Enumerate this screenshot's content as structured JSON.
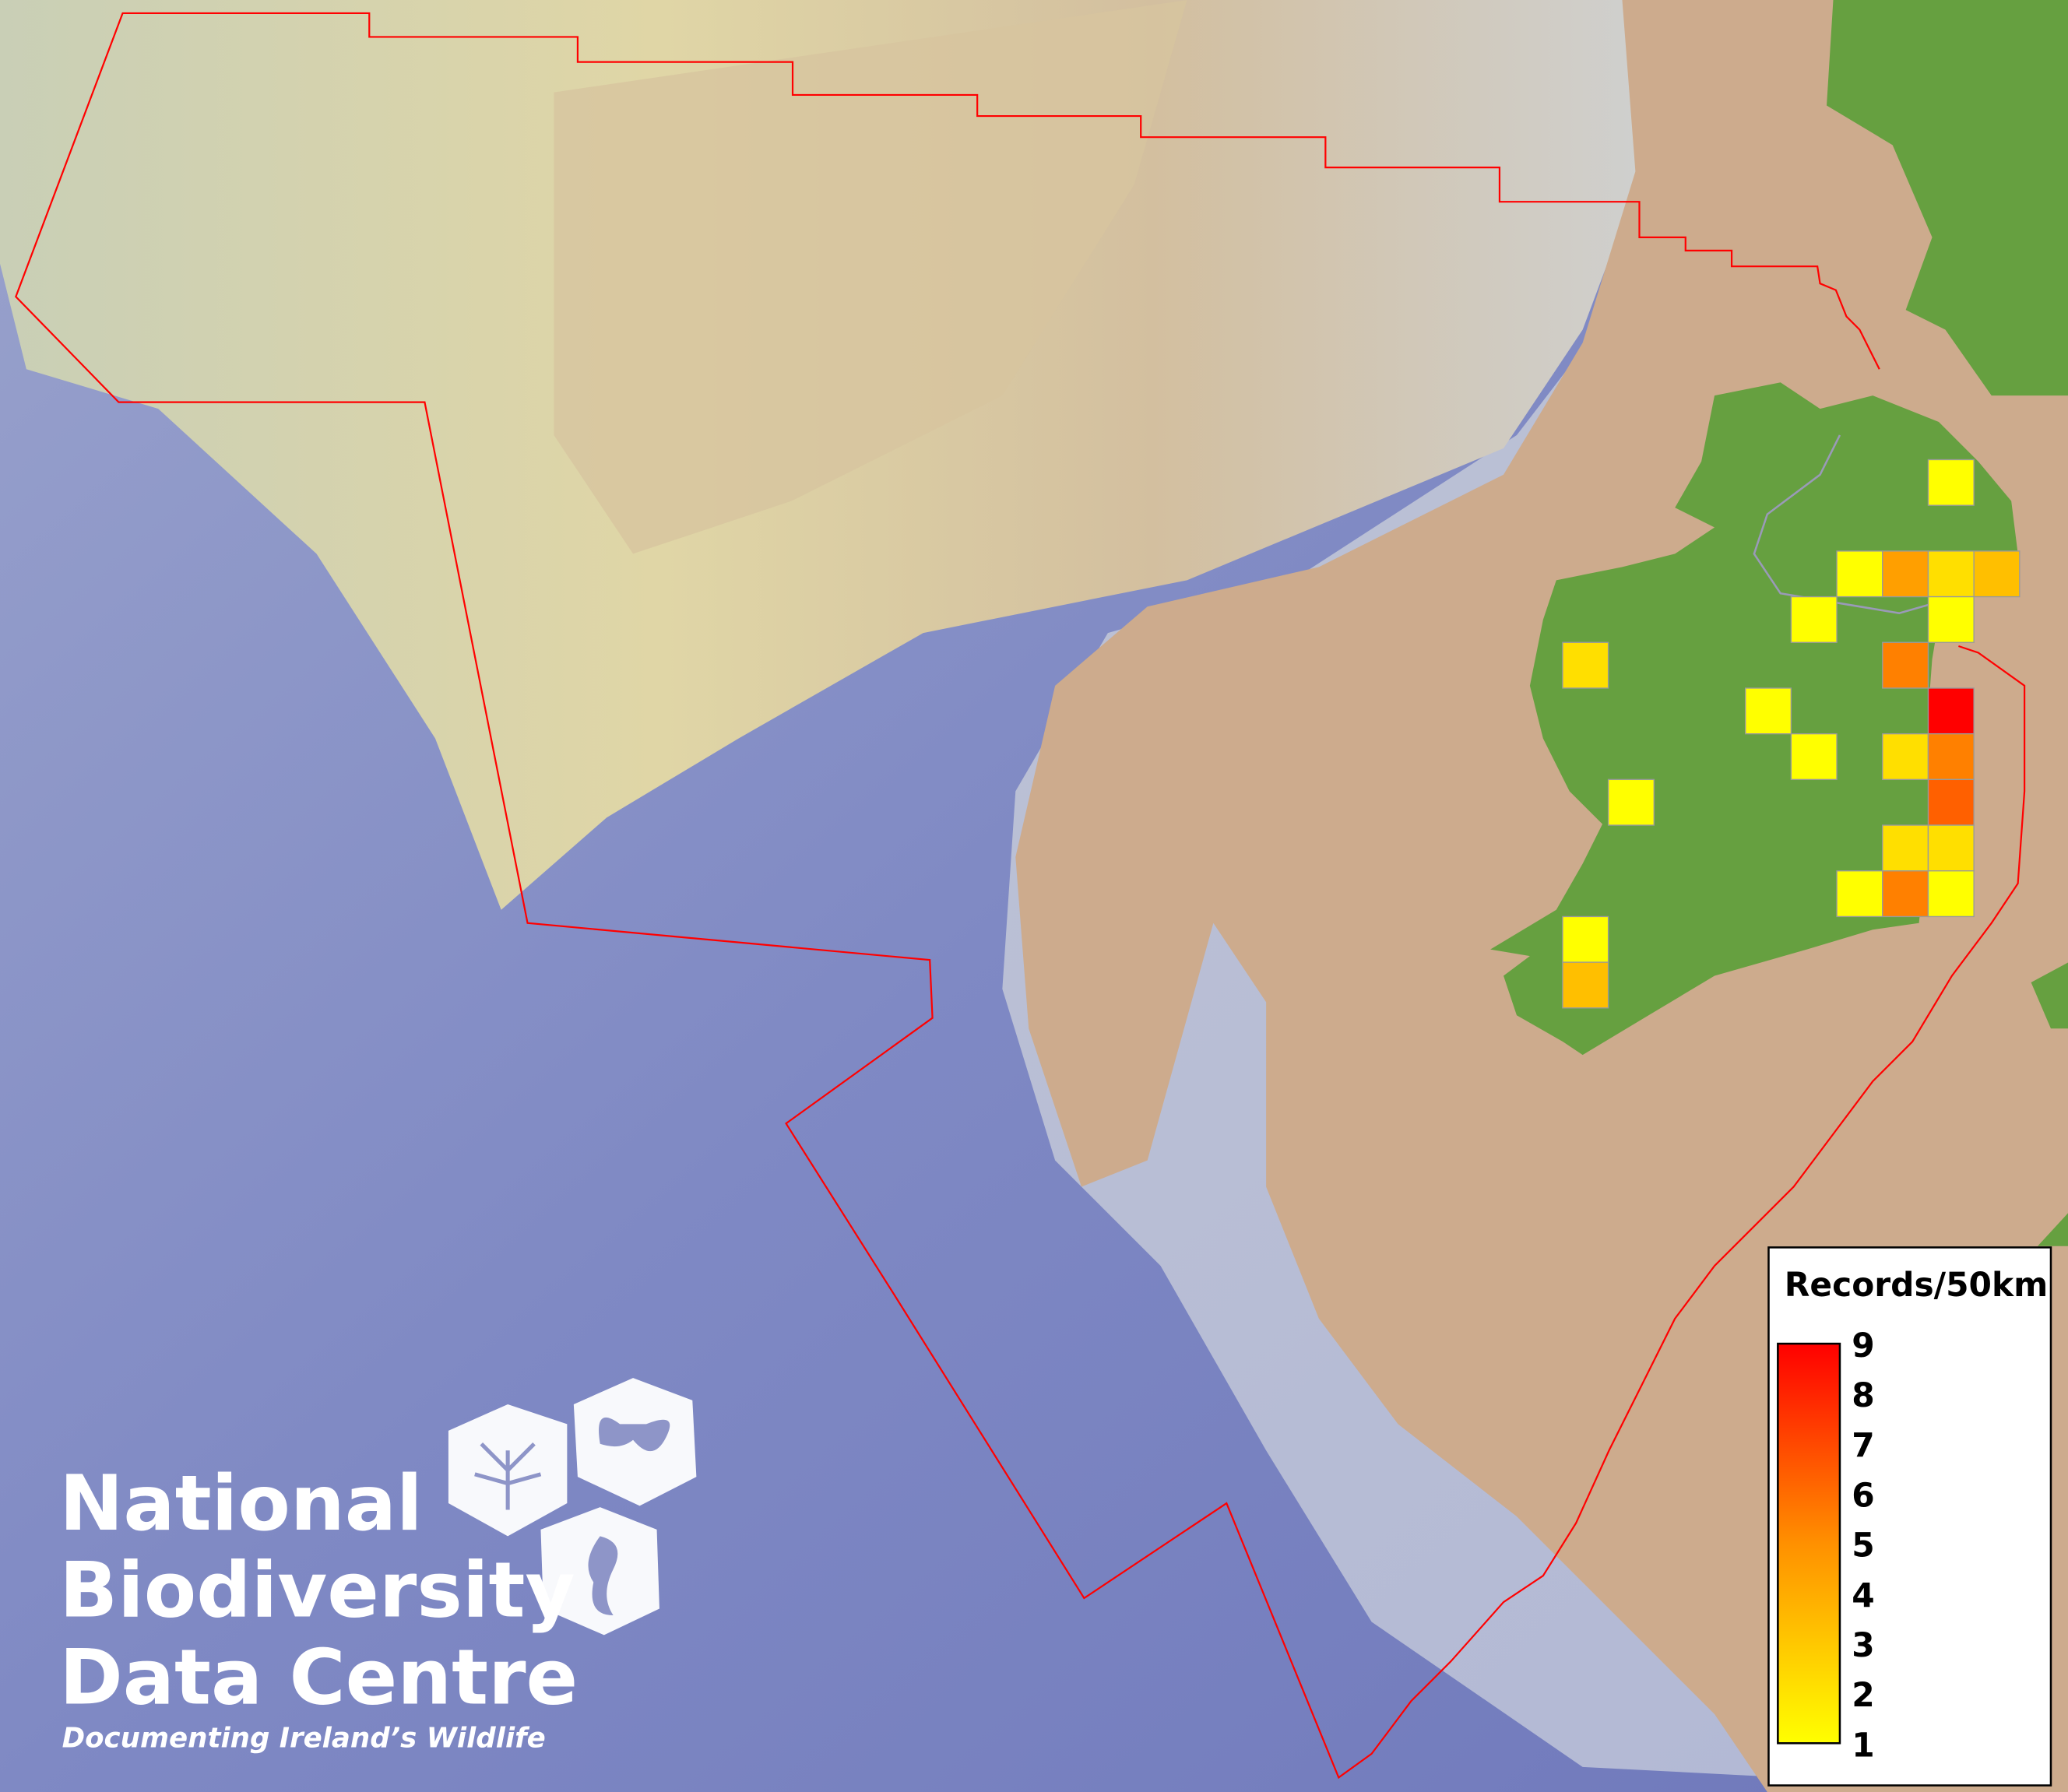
{
  "map": {
    "colors": {
      "ocean": "#7f89c4",
      "shelf": "#dcd9b4",
      "land_sea_tan": "#cdab8d",
      "land": "#66a040",
      "boundary": "#ff0000",
      "cell_border": "#9a9a9a"
    },
    "grid_cells": [
      {
        "col": 8,
        "row": 0,
        "value": 1
      },
      {
        "col": 6,
        "row": 2,
        "value": 1
      },
      {
        "col": 7,
        "row": 2,
        "value": 4
      },
      {
        "col": 8,
        "row": 2,
        "value": 2
      },
      {
        "col": 9,
        "row": 2,
        "value": 3
      },
      {
        "col": 5,
        "row": 3,
        "value": 1
      },
      {
        "col": 8,
        "row": 3,
        "value": 1
      },
      {
        "col": 0,
        "row": 4,
        "value": 2
      },
      {
        "col": 7,
        "row": 4,
        "value": 5
      },
      {
        "col": 4,
        "row": 5,
        "value": 1
      },
      {
        "col": 8,
        "row": 5,
        "value": 9
      },
      {
        "col": 5,
        "row": 6,
        "value": 1
      },
      {
        "col": 7,
        "row": 6,
        "value": 2
      },
      {
        "col": 8,
        "row": 6,
        "value": 5
      },
      {
        "col": 1,
        "row": 7,
        "value": 1
      },
      {
        "col": 8,
        "row": 7,
        "value": 6
      },
      {
        "col": 7,
        "row": 8,
        "value": 2
      },
      {
        "col": 8,
        "row": 8,
        "value": 2
      },
      {
        "col": 6,
        "row": 9,
        "value": 1
      },
      {
        "col": 7,
        "row": 9,
        "value": 5
      },
      {
        "col": 8,
        "row": 9,
        "value": 1
      },
      {
        "col": 0,
        "row": 10,
        "value": 1
      },
      {
        "col": 0,
        "row": 11,
        "value": 3
      }
    ]
  },
  "legend": {
    "title": "Records/50km",
    "min": 1,
    "max": 9,
    "ticks": [
      "9",
      "8",
      "7",
      "6",
      "5",
      "4",
      "3",
      "2",
      "1"
    ],
    "color_low": "#ffff00",
    "color_high": "#ff0000"
  },
  "logo": {
    "line1": "National",
    "line2": "Biodiversity",
    "line3": "Data Centre",
    "tagline": "Documenting Ireland’s Wildlife",
    "icons": [
      "tree-icon",
      "butterfly-icon",
      "seahorse-icon"
    ]
  }
}
